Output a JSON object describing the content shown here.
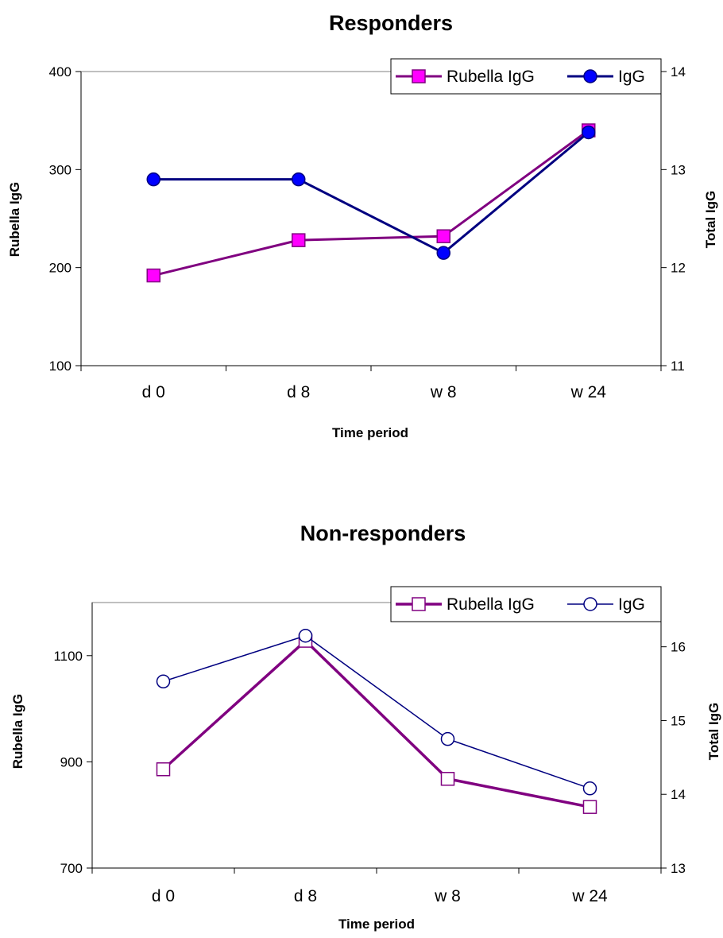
{
  "chart_data": [
    {
      "type": "line",
      "title": "Responders",
      "xlabel": "Time period",
      "ylabel": "Rubella IgG",
      "y2label": "Total IgG",
      "categories": [
        "d 0",
        "d 8",
        "w 8",
        "w 24"
      ],
      "ylim": [
        100,
        400
      ],
      "yticks": [
        100,
        200,
        300,
        400
      ],
      "y2lim": [
        11,
        14
      ],
      "y2ticks": [
        11,
        12,
        13,
        14
      ],
      "legend_position": "top-right",
      "series": [
        {
          "name": "Rubella IgG",
          "axis": "left",
          "values": [
            192,
            228,
            232,
            340
          ],
          "color": "#800080",
          "marker": "square",
          "marker_fill": "#ff00ff",
          "marker_stroke": "#800080",
          "line_width": 3
        },
        {
          "name": "IgG",
          "axis": "right",
          "values": [
            12.9,
            12.9,
            12.15,
            13.38
          ],
          "color": "#000080",
          "marker": "circle",
          "marker_fill": "#0000ff",
          "marker_stroke": "#000080",
          "line_width": 3
        }
      ]
    },
    {
      "type": "line",
      "title": "Non-responders",
      "xlabel": "Time period",
      "ylabel": "Rubella IgG",
      "y2label": "Total IgG",
      "categories": [
        "d 0",
        "d 8",
        "w 8",
        "w 24"
      ],
      "ylim": [
        700,
        1200
      ],
      "yticks": [
        700,
        900,
        1100
      ],
      "y2lim": [
        13,
        16.6
      ],
      "y2ticks": [
        13,
        14,
        15,
        16
      ],
      "legend_position": "top-right",
      "series": [
        {
          "name": "Rubella IgG",
          "axis": "left",
          "values": [
            886,
            1128,
            868,
            815
          ],
          "color": "#800080",
          "marker": "square",
          "marker_fill": "#ffffff",
          "marker_stroke": "#800080",
          "line_width": 3.5
        },
        {
          "name": "IgG",
          "axis": "right",
          "values": [
            15.53,
            16.15,
            14.75,
            14.08
          ],
          "color": "#000080",
          "marker": "circle",
          "marker_fill": "#ffffff",
          "marker_stroke": "#000080",
          "line_width": 1.5
        }
      ]
    }
  ]
}
